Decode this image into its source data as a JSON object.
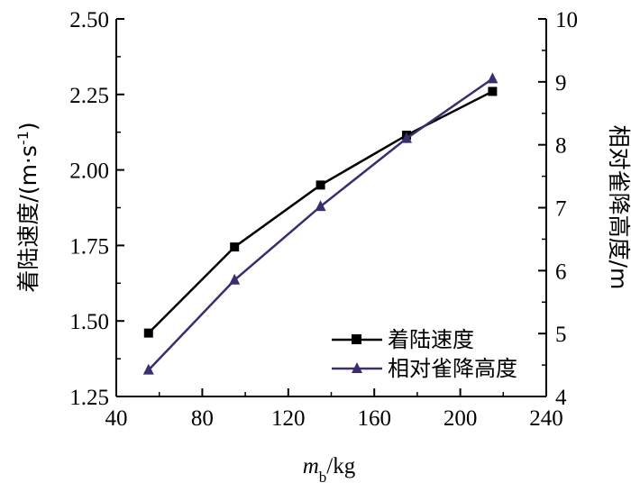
{
  "chart_data": {
    "type": "line",
    "x": [
      55,
      95,
      135,
      175,
      215
    ],
    "xlabel_italic": "m",
    "xlabel_sub": "b",
    "xlabel_unit": "/kg",
    "xlim": [
      40,
      240
    ],
    "xticks": [
      "40",
      "80",
      "120",
      "160",
      "200",
      "240"
    ],
    "ylabel_left_main": "着陆速度/(m·s",
    "ylabel_left_sup": "-1",
    "ylabel_left_end": ")",
    "ylim_left": [
      1.25,
      2.5
    ],
    "yticks_left": [
      "1.25",
      "1.50",
      "1.75",
      "2.00",
      "2.25",
      "2.50"
    ],
    "ylabel_right": "相对雀降高度/m",
    "ylim_right": [
      4,
      10
    ],
    "yticks_right": [
      "4",
      "5",
      "6",
      "7",
      "8",
      "9",
      "10"
    ],
    "series": [
      {
        "name": "着陆速度",
        "axis": "left",
        "marker": "square",
        "color": "#000000",
        "values": [
          1.46,
          1.745,
          1.95,
          2.115,
          2.26
        ]
      },
      {
        "name": "相对雀降高度",
        "axis": "right",
        "marker": "triangle",
        "color": "#3b2d6e",
        "values": [
          4.42,
          5.85,
          7.02,
          8.1,
          9.05
        ]
      }
    ],
    "legend_position": "bottom-right",
    "grid": false
  }
}
